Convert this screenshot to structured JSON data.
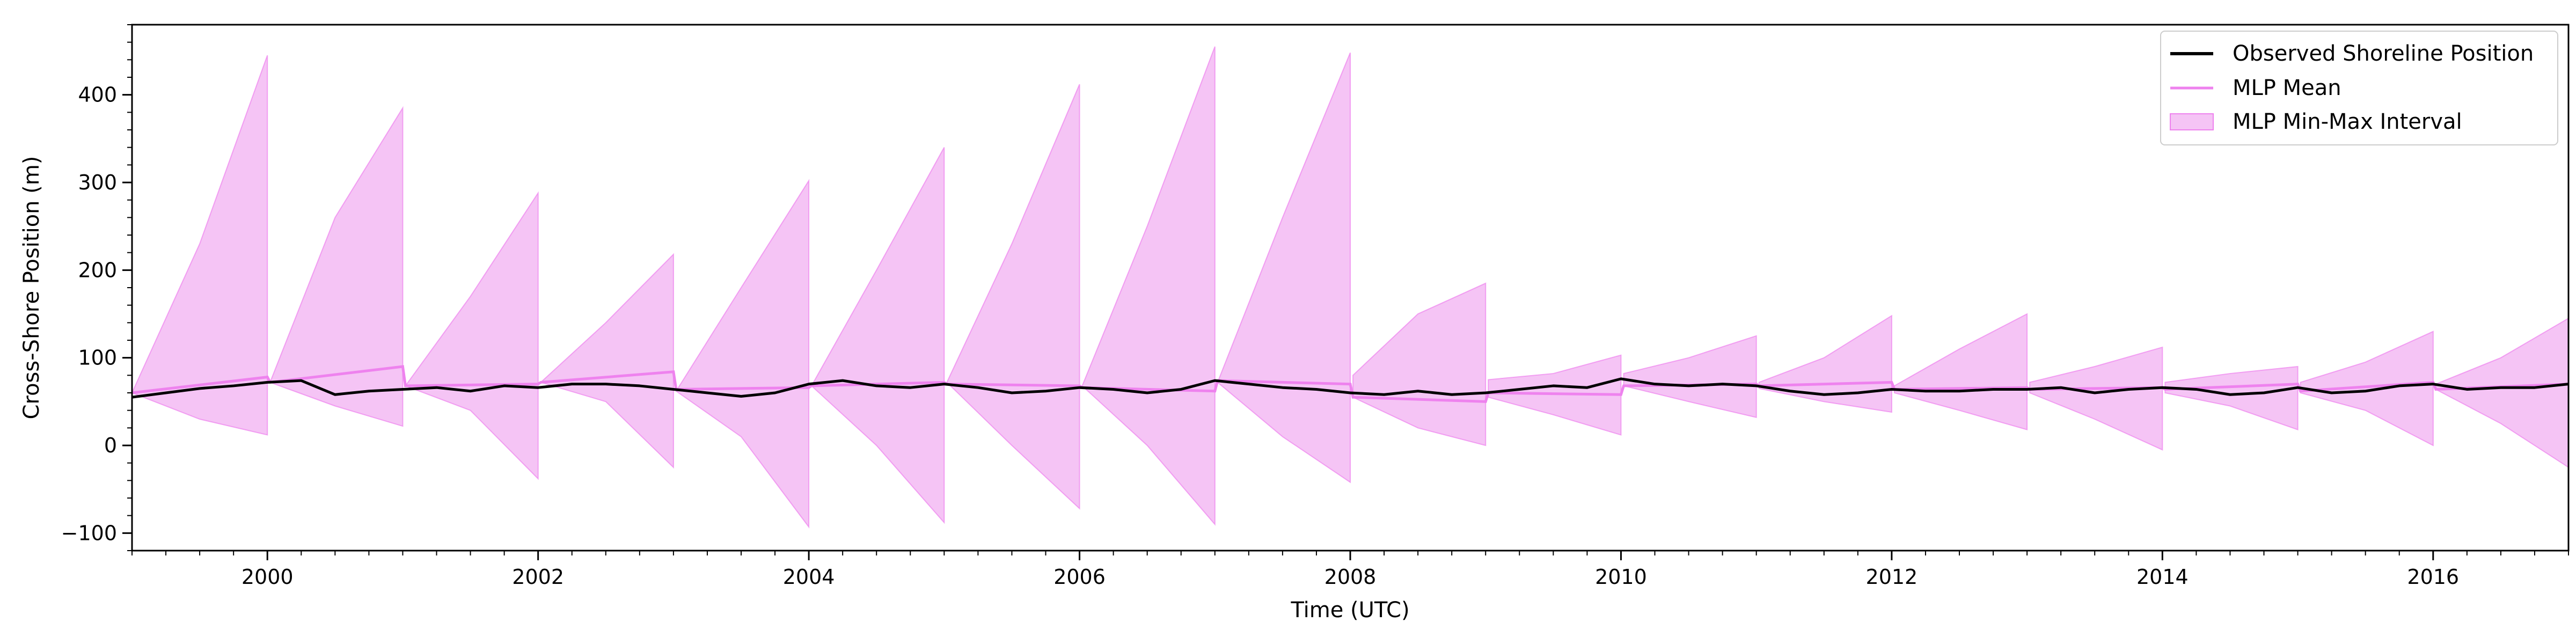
{
  "chart_data": {
    "type": "line",
    "title": "",
    "xlabel": "Time (UTC)",
    "ylabel": "Cross-Shore Position (m)",
    "xlim": [
      1999.0,
      2017.0
    ],
    "ylim": [
      -120,
      480
    ],
    "x_ticks": [
      2000,
      2002,
      2004,
      2006,
      2008,
      2010,
      2012,
      2014,
      2016
    ],
    "x_tick_labels": [
      "2000",
      "2002",
      "2004",
      "2006",
      "2008",
      "2010",
      "2012",
      "2014",
      "2016"
    ],
    "y_ticks": [
      -100,
      0,
      100,
      200,
      300,
      400
    ],
    "y_tick_labels": [
      "−100",
      "0",
      "100",
      "200",
      "300",
      "400"
    ],
    "grid": false,
    "legend": {
      "position": "top-right",
      "entries": [
        "Observed Shoreline Position",
        "MLP Mean",
        "MLP Min-Max Interval"
      ]
    },
    "colors": {
      "observed": "#000000",
      "mean": "#ee82ee",
      "band_fill": "#f5c4f5",
      "band_edge": "#ee82ee"
    },
    "series": [
      {
        "name": "Observed Shoreline Position",
        "x": [
          1999.0,
          1999.25,
          1999.5,
          1999.75,
          2000.0,
          2000.25,
          2000.5,
          2000.75,
          2001.0,
          2001.25,
          2001.5,
          2001.75,
          2002.0,
          2002.25,
          2002.5,
          2002.75,
          2003.0,
          2003.25,
          2003.5,
          2003.75,
          2004.0,
          2004.25,
          2004.5,
          2004.75,
          2005.0,
          2005.25,
          2005.5,
          2005.75,
          2006.0,
          2006.25,
          2006.5,
          2006.75,
          2007.0,
          2007.25,
          2007.5,
          2007.75,
          2008.0,
          2008.25,
          2008.5,
          2008.75,
          2009.0,
          2009.25,
          2009.5,
          2009.75,
          2010.0,
          2010.25,
          2010.5,
          2010.75,
          2011.0,
          2011.25,
          2011.5,
          2011.75,
          2012.0,
          2012.25,
          2012.5,
          2012.75,
          2013.0,
          2013.25,
          2013.5,
          2013.75,
          2014.0,
          2014.25,
          2014.5,
          2014.75,
          2015.0,
          2015.25,
          2015.5,
          2015.75,
          2016.0,
          2016.25,
          2016.5,
          2016.75,
          2017.0
        ],
        "values": [
          55,
          60,
          65,
          68,
          72,
          74,
          58,
          62,
          64,
          66,
          62,
          68,
          66,
          70,
          70,
          68,
          64,
          60,
          56,
          60,
          70,
          74,
          68,
          66,
          70,
          66,
          60,
          62,
          66,
          64,
          60,
          64,
          74,
          70,
          66,
          64,
          60,
          58,
          62,
          58,
          60,
          64,
          68,
          66,
          76,
          70,
          68,
          70,
          68,
          62,
          58,
          60,
          64,
          62,
          62,
          64,
          64,
          66,
          60,
          64,
          66,
          64,
          58,
          60,
          66,
          60,
          62,
          68,
          70,
          64,
          66,
          66,
          70
        ]
      },
      {
        "name": "MLP Mean",
        "x": [
          1999.0,
          2000.0,
          2000.02,
          2001.0,
          2001.02,
          2002.0,
          2002.02,
          2003.0,
          2003.02,
          2004.0,
          2004.02,
          2005.0,
          2005.02,
          2006.0,
          2006.02,
          2007.0,
          2007.02,
          2008.0,
          2008.02,
          2009.0,
          2009.02,
          2010.0,
          2010.02,
          2011.0,
          2011.02,
          2012.0,
          2012.02,
          2013.0,
          2013.02,
          2014.0,
          2014.02,
          2015.0,
          2015.02,
          2016.0,
          2016.02,
          2017.0
        ],
        "values": [
          60,
          78,
          72,
          90,
          68,
          70,
          72,
          84,
          64,
          66,
          68,
          72,
          70,
          68,
          66,
          62,
          74,
          70,
          55,
          50,
          60,
          58,
          68,
          70,
          68,
          72,
          64,
          66,
          64,
          66,
          64,
          70,
          62,
          72,
          64,
          70
        ]
      },
      {
        "name": "MLP Min-Max Interval",
        "segments": [
          {
            "x": [
              1999.0,
              1999.5,
              2000.0
            ],
            "upper": [
              60,
              230,
              445
            ],
            "lower": [
              60,
              30,
              12
            ]
          },
          {
            "x": [
              2000.02,
              2000.5,
              2001.0
            ],
            "upper": [
              72,
              260,
              385
            ],
            "lower": [
              72,
              45,
              22
            ]
          },
          {
            "x": [
              2001.02,
              2001.5,
              2002.0
            ],
            "upper": [
              68,
              170,
              288
            ],
            "lower": [
              68,
              40,
              -38
            ]
          },
          {
            "x": [
              2002.02,
              2002.5,
              2003.0
            ],
            "upper": [
              72,
              140,
              218
            ],
            "lower": [
              72,
              50,
              -25
            ]
          },
          {
            "x": [
              2003.02,
              2003.5,
              2004.0
            ],
            "upper": [
              62,
              180,
              302
            ],
            "lower": [
              62,
              10,
              -93
            ]
          },
          {
            "x": [
              2004.02,
              2004.5,
              2005.0
            ],
            "upper": [
              68,
              200,
              340
            ],
            "lower": [
              68,
              0,
              -88
            ]
          },
          {
            "x": [
              2005.02,
              2005.5,
              2006.0
            ],
            "upper": [
              72,
              230,
              412
            ],
            "lower": [
              72,
              0,
              -72
            ]
          },
          {
            "x": [
              2006.02,
              2006.5,
              2007.0
            ],
            "upper": [
              68,
              250,
              455
            ],
            "lower": [
              68,
              0,
              -90
            ]
          },
          {
            "x": [
              2007.02,
              2007.5,
              2008.0
            ],
            "upper": [
              72,
              260,
              448
            ],
            "lower": [
              72,
              10,
              -42
            ]
          },
          {
            "x": [
              2008.02,
              2008.5,
              2009.0
            ],
            "upper": [
              80,
              150,
              185
            ],
            "lower": [
              55,
              20,
              0
            ]
          },
          {
            "x": [
              2009.02,
              2009.5,
              2010.0
            ],
            "upper": [
              75,
              82,
              103
            ],
            "lower": [
              55,
              35,
              12
            ]
          },
          {
            "x": [
              2010.02,
              2010.5,
              2011.0
            ],
            "upper": [
              82,
              100,
              125
            ],
            "lower": [
              68,
              50,
              32
            ]
          },
          {
            "x": [
              2011.02,
              2011.5,
              2012.0
            ],
            "upper": [
              72,
              100,
              148
            ],
            "lower": [
              65,
              50,
              38
            ]
          },
          {
            "x": [
              2012.02,
              2012.5,
              2013.0
            ],
            "upper": [
              68,
              110,
              150
            ],
            "lower": [
              60,
              40,
              18
            ]
          },
          {
            "x": [
              2013.02,
              2013.5,
              2014.0
            ],
            "upper": [
              72,
              90,
              112
            ],
            "lower": [
              60,
              30,
              -5
            ]
          },
          {
            "x": [
              2014.02,
              2014.5,
              2015.0
            ],
            "upper": [
              72,
              82,
              90
            ],
            "lower": [
              60,
              45,
              18
            ]
          },
          {
            "x": [
              2015.02,
              2015.5,
              2016.0
            ],
            "upper": [
              72,
              95,
              130
            ],
            "lower": [
              60,
              40,
              0
            ]
          },
          {
            "x": [
              2016.02,
              2016.5,
              2017.0
            ],
            "upper": [
              70,
              100,
              145
            ],
            "lower": [
              64,
              25,
              -25
            ]
          }
        ]
      }
    ]
  }
}
